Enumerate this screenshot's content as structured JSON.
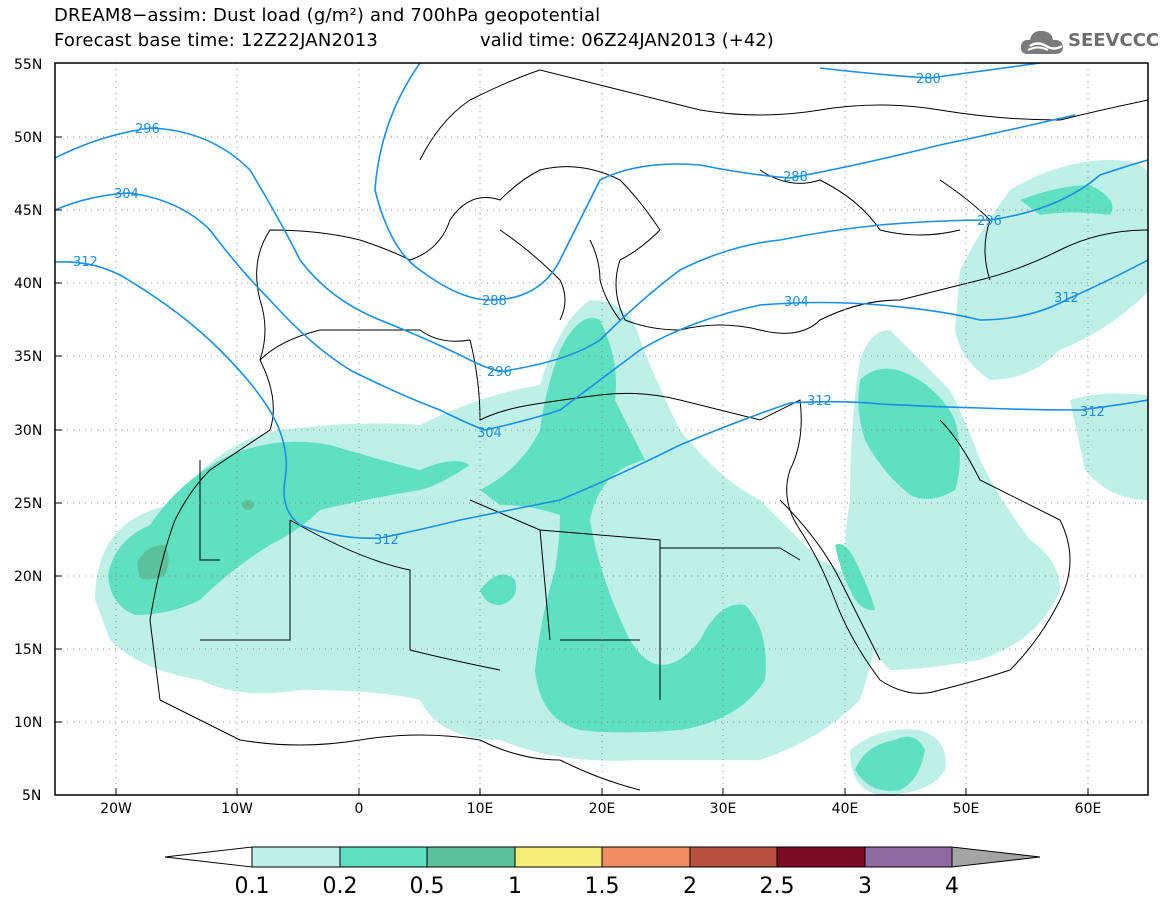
{
  "header": {
    "title_line1": "DREAM8−assim: Dust load (g/m²) and 700hPa geopotential",
    "title_line2": "Forecast base time: 12Z22JAN2013",
    "valid_time": "valid time: 06Z24JAN2013 (+42)",
    "logo_text": "SEEVCCC"
  },
  "map": {
    "lat_labels": [
      "55N",
      "50N",
      "45N",
      "40N",
      "35N",
      "30N",
      "25N",
      "20N",
      "15N",
      "10N",
      "5N"
    ],
    "lon_labels": [
      "20W",
      "10W",
      "0",
      "10E",
      "20E",
      "30E",
      "40E",
      "50E",
      "60E"
    ],
    "contour_color": "#1a8fe8",
    "contour_labels": [
      "280",
      "288",
      "288",
      "296",
      "296",
      "296",
      "304",
      "304",
      "304",
      "312",
      "312",
      "312",
      "312"
    ]
  },
  "colorbar": {
    "levels": [
      "0.1",
      "0.2",
      "0.5",
      "1",
      "1.5",
      "2",
      "2.5",
      "3",
      "4"
    ],
    "colors": [
      "#bff0e8",
      "#5fe0c0",
      "#5cc09a",
      "#f7ee7a",
      "#ee8c64",
      "#b85140",
      "#7a0a26",
      "#8e6aa0",
      "#a4a4a4"
    ]
  }
}
